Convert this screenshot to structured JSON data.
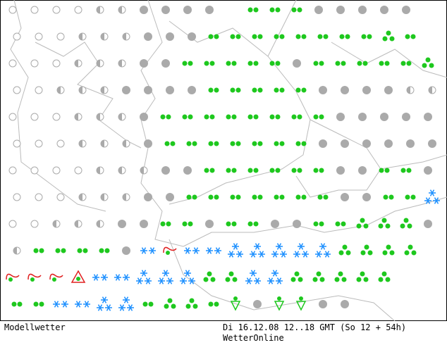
{
  "footer": {
    "left": "Modellwetter",
    "right": "Di 16.12.08 12..18 GMT (So 12 + 54h)",
    "brand": "WetterOnline"
  }
}
